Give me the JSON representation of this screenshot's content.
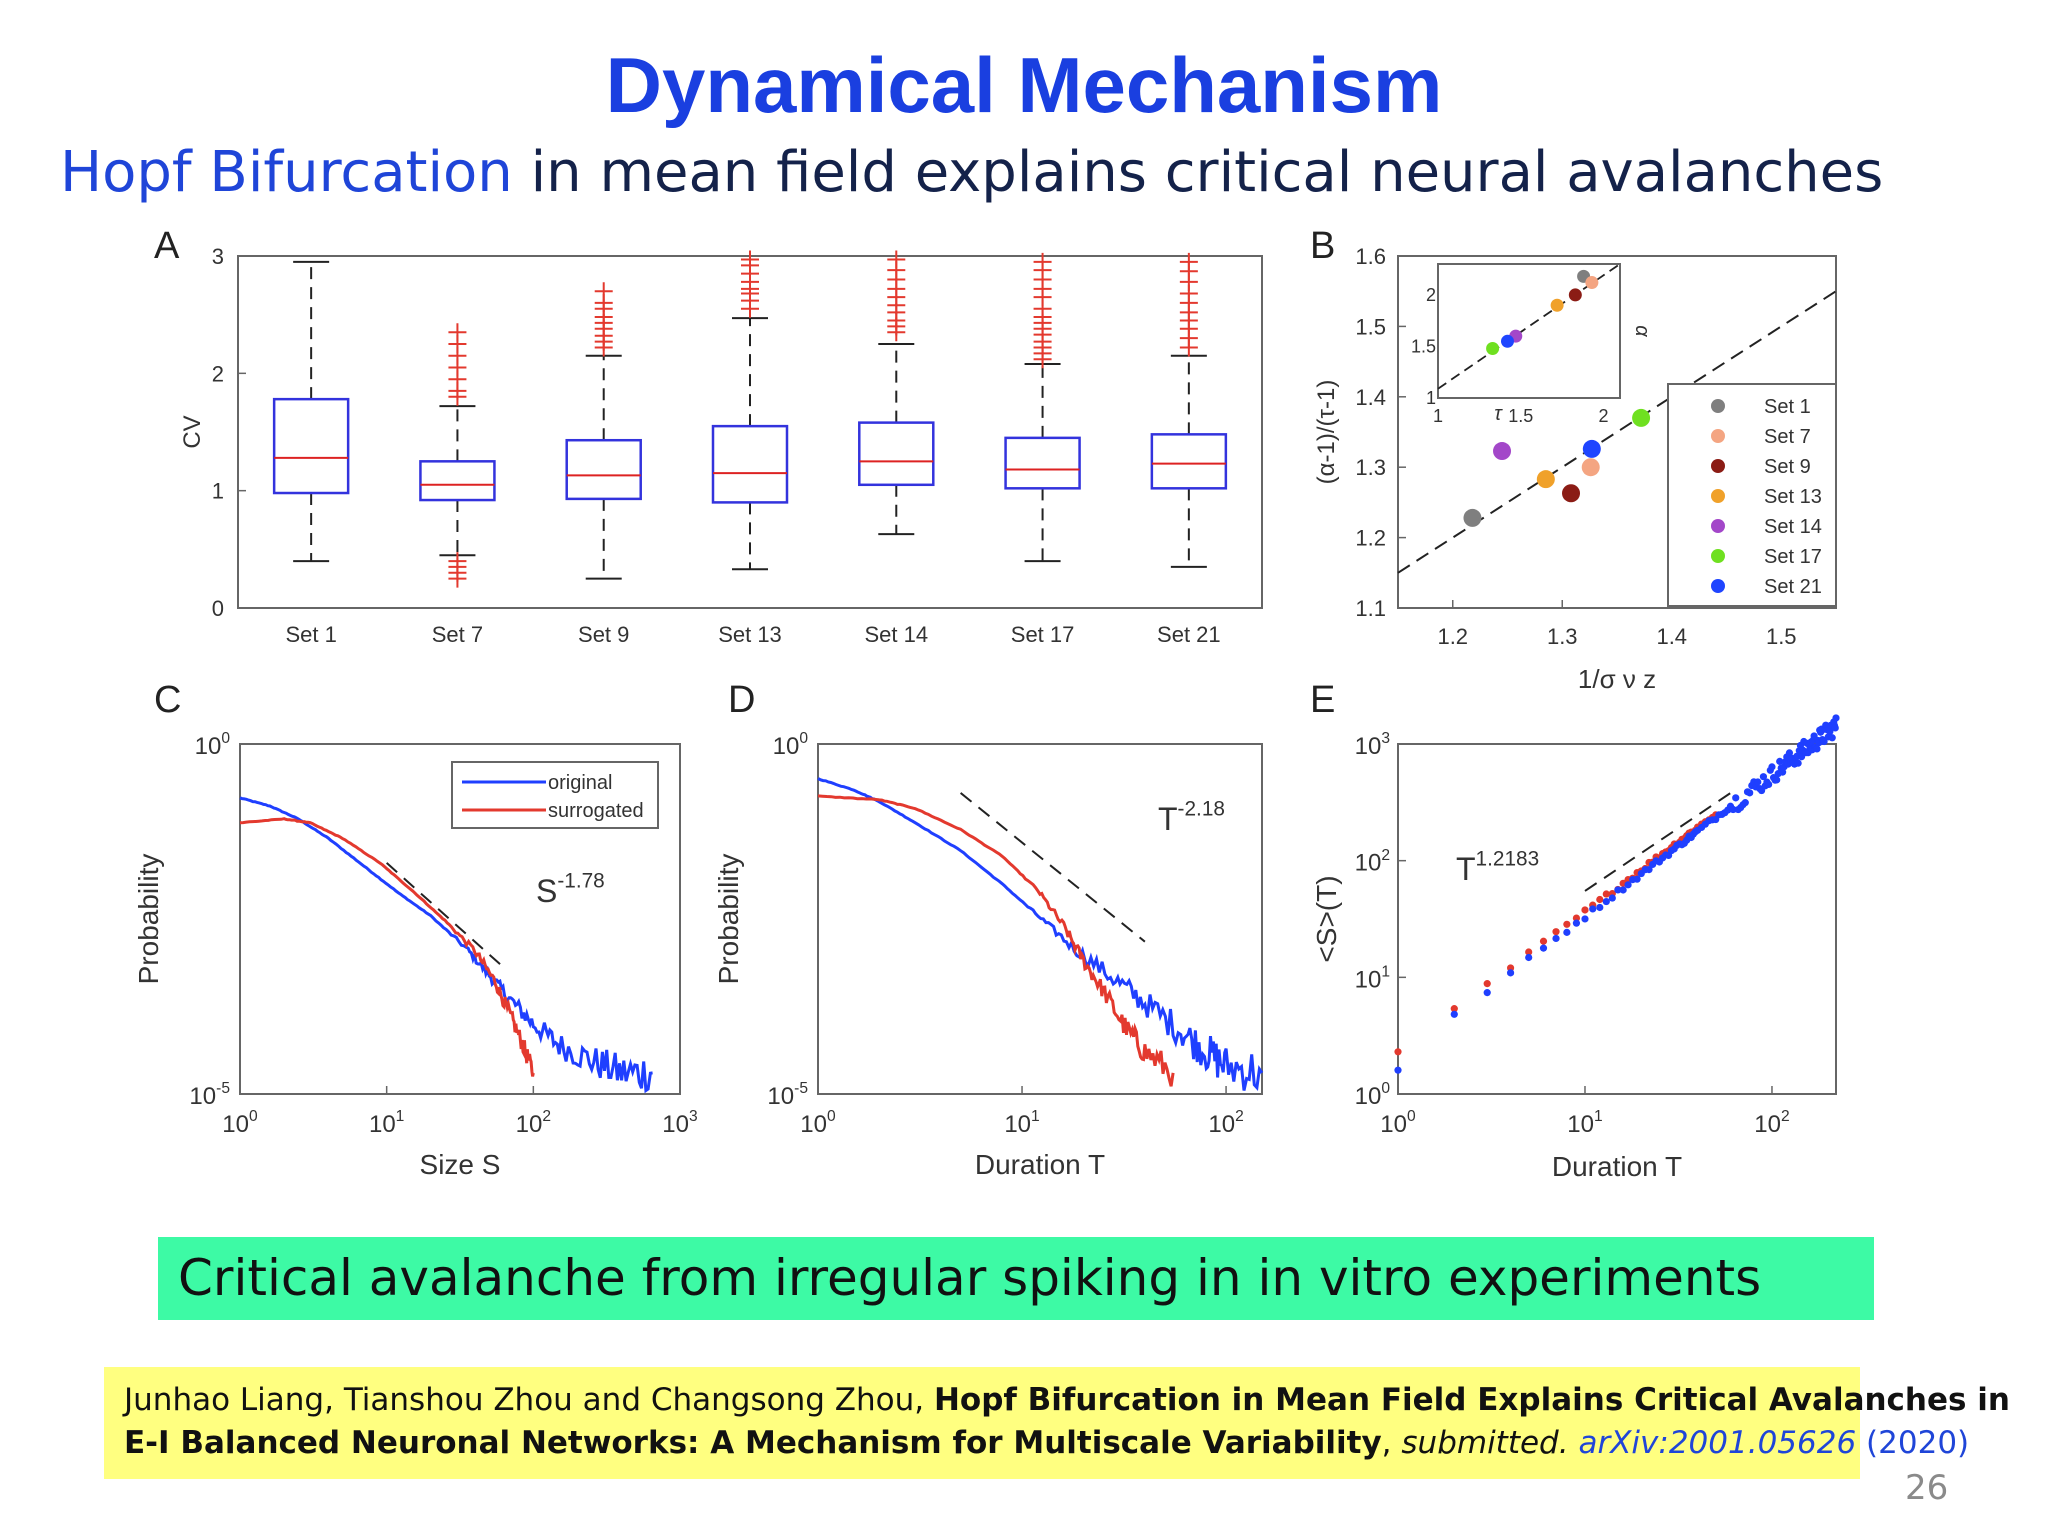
{
  "slide": {
    "title": "Dynamical Mechanism",
    "subtitle_highlight": "Hopf Bifurcation",
    "subtitle_rest": " in mean field explains critical neural  avalanches",
    "conclusion": "Critical avalanche from irregular spiking in in vitro experiments",
    "reference": {
      "authors": "Junhao Liang, Tianshou Zhou and Changsong Zhou, ",
      "title_line1": "Hopf Bifurcation in Mean Field Explains Critical Avalanches in",
      "title_line2": "E-I Balanced Neuronal Networks: A Mechanism for Multiscale Variability",
      "sep": ",  ",
      "status": "submitted.",
      "arxiv": " arXiv:2001.05626",
      "year": " (2020)"
    },
    "page_number": "26"
  },
  "colors": {
    "title": "#1a3fe0",
    "box": "#3333dd",
    "median": "#dd2222",
    "original": "#1f3fff",
    "surrogated": "#e3392e"
  },
  "chart_data": [
    {
      "panel": "A",
      "type": "box",
      "ylabel": "CV",
      "ylim": [
        0,
        3
      ],
      "yticks": [
        "0",
        "1",
        "2",
        "3"
      ],
      "categories": [
        "Set 1",
        "Set 7",
        "Set 9",
        "Set 13",
        "Set 14",
        "Set 17",
        "Set 21"
      ],
      "boxes": [
        {
          "wlo": 0.4,
          "q1": 0.98,
          "med": 1.28,
          "q3": 1.78,
          "whi": 2.95,
          "outliers": []
        },
        {
          "wlo": 0.45,
          "q1": 0.92,
          "med": 1.05,
          "q3": 1.25,
          "whi": 1.72,
          "outliers": [
            0.25,
            0.3,
            0.35,
            0.4,
            1.8,
            1.85,
            1.95,
            2.05,
            2.15,
            2.25,
            2.35
          ]
        },
        {
          "wlo": 0.25,
          "q1": 0.93,
          "med": 1.13,
          "q3": 1.43,
          "whi": 2.15,
          "outliers": [
            2.22,
            2.27,
            2.32,
            2.38,
            2.43,
            2.48,
            2.55,
            2.6,
            2.7
          ]
        },
        {
          "wlo": 0.33,
          "q1": 0.9,
          "med": 1.15,
          "q3": 1.55,
          "whi": 2.47,
          "outliers": [
            2.55,
            2.62,
            2.68,
            2.72,
            2.78,
            2.85,
            2.92,
            2.97
          ]
        },
        {
          "wlo": 0.63,
          "q1": 1.05,
          "med": 1.25,
          "q3": 1.58,
          "whi": 2.25,
          "outliers": [
            2.35,
            2.4,
            2.45,
            2.52,
            2.58,
            2.65,
            2.72,
            2.8,
            2.88,
            2.97
          ]
        },
        {
          "wlo": 0.4,
          "q1": 1.02,
          "med": 1.18,
          "q3": 1.45,
          "whi": 2.08,
          "outliers": [
            2.12,
            2.17,
            2.22,
            2.27,
            2.33,
            2.38,
            2.43,
            2.48,
            2.55,
            2.65,
            2.72,
            2.8,
            2.88,
            2.95
          ]
        },
        {
          "wlo": 0.35,
          "q1": 1.02,
          "med": 1.23,
          "q3": 1.48,
          "whi": 2.15,
          "outliers": [
            2.22,
            2.3,
            2.38,
            2.45,
            2.52,
            2.6,
            2.68,
            2.78,
            2.87,
            2.95
          ]
        }
      ]
    },
    {
      "panel": "B",
      "type": "scatter",
      "xlabel": "1/σ ν z",
      "ylabel": "(α-1)/(τ-1)",
      "xlim": [
        1.15,
        1.55
      ],
      "ylim": [
        1.1,
        1.6
      ],
      "xticks": [
        "1.2",
        "1.3",
        "1.4",
        "1.5"
      ],
      "yticks": [
        "1.1",
        "1.2",
        "1.3",
        "1.4",
        "1.5",
        "1.6"
      ],
      "legend_position": "bottom-right",
      "series": [
        {
          "name": "Set 1",
          "color": "#7f7f7f",
          "x": 1.218,
          "y": 1.228
        },
        {
          "name": "Set 7",
          "color": "#f4a582",
          "x": 1.326,
          "y": 1.3
        },
        {
          "name": "Set 9",
          "color": "#8b1c15",
          "x": 1.308,
          "y": 1.263
        },
        {
          "name": "Set 13",
          "color": "#f0a12a",
          "x": 1.285,
          "y": 1.283
        },
        {
          "name": "Set 14",
          "color": "#a347c9",
          "x": 1.245,
          "y": 1.323
        },
        {
          "name": "Set 17",
          "color": "#6fe020",
          "x": 1.372,
          "y": 1.37
        },
        {
          "name": "Set 21",
          "color": "#1f45ff",
          "x": 1.327,
          "y": 1.326
        }
      ],
      "inset": {
        "xlabel": "τ",
        "ylabel": "α",
        "xlim": [
          1,
          2.1
        ],
        "ylim": [
          1,
          2.3
        ],
        "xticks": [
          "1",
          "1.5",
          "2"
        ],
        "yticks": [
          "1",
          "1.5",
          "2"
        ],
        "points": [
          {
            "color": "#7f7f7f",
            "x": 1.88,
            "y": 2.18
          },
          {
            "color": "#f4a582",
            "x": 1.93,
            "y": 2.12
          },
          {
            "color": "#8b1c15",
            "x": 1.83,
            "y": 2.0
          },
          {
            "color": "#f0a12a",
            "x": 1.72,
            "y": 1.9
          },
          {
            "color": "#a347c9",
            "x": 1.47,
            "y": 1.6
          },
          {
            "color": "#1f45ff",
            "x": 1.42,
            "y": 1.55
          },
          {
            "color": "#6fe020",
            "x": 1.33,
            "y": 1.48
          }
        ]
      }
    },
    {
      "panel": "C",
      "type": "line",
      "scale": "log-log",
      "xlabel": "Size S",
      "ylabel": "Probability",
      "xlim": [
        1,
        1000
      ],
      "ylim": [
        1e-05,
        1
      ],
      "xticks": [
        {
          "b": "10",
          "e": "0"
        },
        {
          "b": "10",
          "e": "1"
        },
        {
          "b": "10",
          "e": "2"
        },
        {
          "b": "10",
          "e": "3"
        }
      ],
      "yticks": [
        {
          "b": "10",
          "e": "-5"
        },
        {
          "b": "10",
          "e": "0"
        }
      ],
      "annotation": {
        "base": "S",
        "exp": "-1.78"
      },
      "series": [
        {
          "name": "original",
          "color": "#1f3fff",
          "points": [
            [
              1,
              0.17
            ],
            [
              1.6,
              0.13
            ],
            [
              2.5,
              0.085
            ],
            [
              4,
              0.045
            ],
            [
              7,
              0.018
            ],
            [
              12,
              0.0075
            ],
            [
              20,
              0.0035
            ],
            [
              35,
              0.0012
            ],
            [
              50,
              0.0005
            ],
            [
              70,
              0.00022
            ],
            [
              100,
              0.0001
            ],
            [
              150,
              5e-05
            ],
            [
              250,
              3e-05
            ],
            [
              400,
              2e-05
            ],
            [
              650,
              2e-05
            ]
          ]
        },
        {
          "name": "surrogated",
          "color": "#e3392e",
          "points": [
            [
              1,
              0.075
            ],
            [
              2,
              0.085
            ],
            [
              3,
              0.075
            ],
            [
              5,
              0.045
            ],
            [
              9,
              0.02
            ],
            [
              15,
              0.008
            ],
            [
              25,
              0.003
            ],
            [
              40,
              0.0011
            ],
            [
              55,
              0.0004
            ],
            [
              70,
              0.00013
            ],
            [
              85,
              5e-05
            ],
            [
              100,
              2e-05
            ]
          ]
        }
      ],
      "guide": [
        [
          10,
          0.02
        ],
        [
          60,
          0.0007
        ]
      ],
      "legend_position": "top-right"
    },
    {
      "panel": "D",
      "type": "line",
      "scale": "log-log",
      "xlabel": "Duration T",
      "ylabel": "Probability",
      "xlim": [
        1,
        150
      ],
      "ylim": [
        1e-05,
        1
      ],
      "xticks": [
        {
          "b": "10",
          "e": "0"
        },
        {
          "b": "10",
          "e": "1"
        },
        {
          "b": "10",
          "e": "2"
        }
      ],
      "yticks": [
        {
          "b": "10",
          "e": "-5"
        },
        {
          "b": "10",
          "e": "0"
        }
      ],
      "annotation": {
        "base": "T",
        "exp": "-2.18"
      },
      "series": [
        {
          "name": "original",
          "color": "#1f3fff",
          "points": [
            [
              1,
              0.32
            ],
            [
              1.5,
              0.22
            ],
            [
              2,
              0.15
            ],
            [
              3,
              0.075
            ],
            [
              5,
              0.03
            ],
            [
              8,
              0.01
            ],
            [
              12,
              0.0035
            ],
            [
              18,
              0.0012
            ],
            [
              28,
              0.00045
            ],
            [
              40,
              0.0002
            ],
            [
              60,
              8e-05
            ],
            [
              80,
              4e-05
            ],
            [
              100,
              2.5e-05
            ],
            [
              150,
              2e-05
            ]
          ]
        },
        {
          "name": "surrogated",
          "color": "#e3392e",
          "points": [
            [
              1,
              0.18
            ],
            [
              2,
              0.16
            ],
            [
              3,
              0.12
            ],
            [
              5,
              0.06
            ],
            [
              8,
              0.025
            ],
            [
              12,
              0.008
            ],
            [
              16,
              0.0025
            ],
            [
              20,
              0.0008
            ],
            [
              25,
              0.0003
            ],
            [
              32,
              9e-05
            ],
            [
              40,
              4e-05
            ],
            [
              55,
              2e-05
            ]
          ]
        }
      ],
      "guide": [
        [
          5,
          0.2
        ],
        [
          40,
          0.0015
        ]
      ]
    },
    {
      "panel": "E",
      "type": "scatter",
      "scale": "log-log",
      "xlabel": "Duration T",
      "ylabel": "<S>(T)",
      "xlim": [
        1,
        220
      ],
      "ylim": [
        1,
        1000
      ],
      "xticks": [
        {
          "b": "10",
          "e": "0"
        },
        {
          "b": "10",
          "e": "1"
        },
        {
          "b": "10",
          "e": "2"
        }
      ],
      "yticks": [
        {
          "b": "10",
          "e": "0"
        },
        {
          "b": "10",
          "e": "1"
        },
        {
          "b": "10",
          "e": "2"
        },
        {
          "b": "10",
          "e": "3"
        }
      ],
      "annotation": {
        "base": "T",
        "exp": "1.2183"
      },
      "series": [
        {
          "name": "original",
          "color": "#1f3fff",
          "exponent": 1.2183,
          "prefactor": 2.0,
          "x_max": 220
        },
        {
          "name": "surrogated",
          "color": "#e3392e",
          "exponent": 1.2,
          "prefactor": 2.3,
          "x_max": 50
        }
      ],
      "guide": [
        [
          10,
          55
        ],
        [
          60,
          380
        ]
      ]
    }
  ]
}
